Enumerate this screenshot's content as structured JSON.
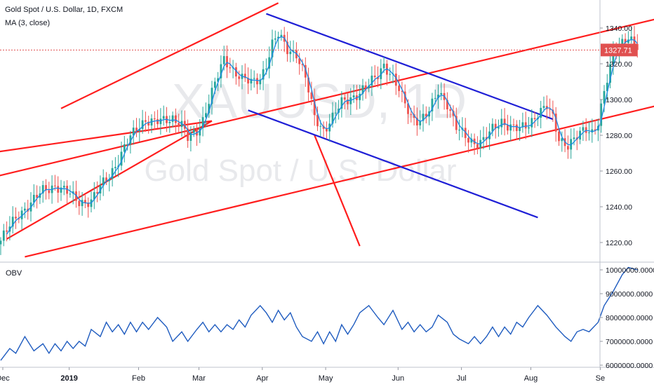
{
  "header": {
    "symbol_line": "Gold Spot / U.S. Dollar, 1D, FXCM",
    "ma_label": "MA (3, close)",
    "watermark_symbol": "XAUUSD, 1D",
    "watermark_name": "Gold Spot / U.S. Dollar"
  },
  "price_badge": "1327.71",
  "osc_label": "OBV",
  "colors": {
    "up": "#26a69a",
    "down": "#ef5350",
    "ma": "#1e88e5",
    "trend_red": "#ff1e1e",
    "trend_blue": "#1f1fd6",
    "obv": "#1e5bbf",
    "badge": "#e05050"
  },
  "chart_data": [
    {
      "type": "candlestick",
      "title": "Gold Spot / U.S. Dollar, 1D, FXCM",
      "series_name": "MA (3, close)",
      "y_ticks": [
        "1340.00",
        "1320.00",
        "1300.00",
        "1280.00",
        "1260.00",
        "1240.00",
        "1220.00"
      ],
      "y_tick_values": [
        1340,
        1320,
        1300,
        1280,
        1260,
        1240,
        1220
      ],
      "ylim": [
        1212,
        1350
      ],
      "x_ticks": [
        "Dec",
        "2019",
        "Feb",
        "Mar",
        "Apr",
        "May",
        "Jun",
        "Jul",
        "Aug",
        "Se"
      ],
      "last_price": 1327.71,
      "close_path": [
        [
          0,
          1221
        ],
        [
          3,
          1229
        ],
        [
          6,
          1236
        ],
        [
          10,
          1242
        ],
        [
          14,
          1249
        ],
        [
          18,
          1252
        ],
        [
          22,
          1248
        ],
        [
          26,
          1243
        ],
        [
          30,
          1243
        ],
        [
          33,
          1251
        ],
        [
          36,
          1258
        ],
        [
          39,
          1266
        ],
        [
          42,
          1276
        ],
        [
          45,
          1284
        ],
        [
          48,
          1289
        ],
        [
          51,
          1287
        ],
        [
          54,
          1288
        ],
        [
          57,
          1290
        ],
        [
          60,
          1286
        ],
        [
          62,
          1278
        ],
        [
          65,
          1282
        ],
        [
          67,
          1289
        ],
        [
          69,
          1300
        ],
        [
          72,
          1313
        ],
        [
          74,
          1322
        ],
        [
          77,
          1317
        ],
        [
          80,
          1312
        ],
        [
          83,
          1309
        ],
        [
          86,
          1312
        ],
        [
          88,
          1320
        ],
        [
          90,
          1331
        ],
        [
          92,
          1336
        ],
        [
          95,
          1328
        ],
        [
          98,
          1326
        ],
        [
          101,
          1312
        ],
        [
          104,
          1290
        ],
        [
          107,
          1283
        ],
        [
          110,
          1290
        ],
        [
          113,
          1298
        ],
        [
          116,
          1301
        ],
        [
          119,
          1304
        ],
        [
          122,
          1308
        ],
        [
          125,
          1314
        ],
        [
          127,
          1320
        ],
        [
          130,
          1312
        ],
        [
          133,
          1301
        ],
        [
          136,
          1291
        ],
        [
          139,
          1288
        ],
        [
          142,
          1293
        ],
        [
          145,
          1305
        ],
        [
          148,
          1298
        ],
        [
          151,
          1284
        ],
        [
          154,
          1279
        ],
        [
          157,
          1276
        ],
        [
          160,
          1277
        ],
        [
          163,
          1283
        ],
        [
          166,
          1288
        ],
        [
          169,
          1285
        ],
        [
          172,
          1283
        ],
        [
          175,
          1286
        ],
        [
          178,
          1293
        ],
        [
          181,
          1296
        ],
        [
          183,
          1289
        ],
        [
          185,
          1278
        ],
        [
          188,
          1275
        ],
        [
          191,
          1279
        ],
        [
          194,
          1283
        ],
        [
          196,
          1282
        ],
        [
          198,
          1288
        ],
        [
          200,
          1304
        ],
        [
          203,
          1324
        ],
        [
          205,
          1331
        ],
        [
          208,
          1336
        ],
        [
          211,
          1328
        ]
      ],
      "trendlines": [
        {
          "color": "red",
          "from": [
            -4,
            1270
          ],
          "to": [
            70,
            1288
          ]
        },
        {
          "color": "red",
          "from": [
            -4,
            1256
          ],
          "to": [
            242,
            1355
          ]
        },
        {
          "color": "red",
          "from": [
            8,
            1212
          ],
          "to": [
            283,
            1323
          ]
        },
        {
          "color": "red",
          "from": [
            20,
            1295
          ],
          "to": [
            92,
            1354
          ]
        },
        {
          "color": "red",
          "from": [
            2,
            1222
          ],
          "to": [
            70,
            1288
          ]
        },
        {
          "color": "red",
          "from": [
            104,
            1280
          ],
          "to": [
            119,
            1218
          ]
        },
        {
          "color": "blue",
          "from": [
            88,
            1348
          ],
          "to": [
            183,
            1289
          ]
        },
        {
          "color": "blue",
          "from": [
            82,
            1294
          ],
          "to": [
            178,
            1234
          ]
        }
      ]
    },
    {
      "type": "line",
      "title": "OBV",
      "y_ticks": [
        "10000000.0000",
        "9000000.0000",
        "8000000.0000",
        "7000000.0000",
        "6000000.0000"
      ],
      "y_tick_values": [
        10000000,
        9000000,
        8000000,
        7000000,
        6000000
      ],
      "ylim": [
        5900000,
        10150000
      ],
      "values_path": [
        [
          0,
          6200000
        ],
        [
          3,
          6700000
        ],
        [
          5,
          6500000
        ],
        [
          8,
          7200000
        ],
        [
          11,
          6600000
        ],
        [
          14,
          6900000
        ],
        [
          16,
          6500000
        ],
        [
          18,
          6900000
        ],
        [
          20,
          6600000
        ],
        [
          22,
          7000000
        ],
        [
          24,
          6700000
        ],
        [
          26,
          7000000
        ],
        [
          28,
          6800000
        ],
        [
          30,
          7500000
        ],
        [
          33,
          7200000
        ],
        [
          35,
          7800000
        ],
        [
          37,
          7400000
        ],
        [
          39,
          7700000
        ],
        [
          41,
          7300000
        ],
        [
          43,
          7800000
        ],
        [
          45,
          7400000
        ],
        [
          47,
          7800000
        ],
        [
          49,
          7500000
        ],
        [
          52,
          8000000
        ],
        [
          55,
          7600000
        ],
        [
          57,
          7000000
        ],
        [
          60,
          7400000
        ],
        [
          62,
          7000000
        ],
        [
          65,
          7500000
        ],
        [
          67,
          7800000
        ],
        [
          69,
          7400000
        ],
        [
          71,
          7700000
        ],
        [
          73,
          7400000
        ],
        [
          75,
          7700000
        ],
        [
          77,
          7500000
        ],
        [
          79,
          7900000
        ],
        [
          81,
          7600000
        ],
        [
          83,
          8100000
        ],
        [
          86,
          8500000
        ],
        [
          88,
          8200000
        ],
        [
          90,
          7800000
        ],
        [
          92,
          8300000
        ],
        [
          94,
          7900000
        ],
        [
          96,
          8200000
        ],
        [
          98,
          7600000
        ],
        [
          100,
          7200000
        ],
        [
          103,
          7000000
        ],
        [
          105,
          7400000
        ],
        [
          107,
          6900000
        ],
        [
          109,
          7400000
        ],
        [
          111,
          7000000
        ],
        [
          113,
          7700000
        ],
        [
          115,
          7300000
        ],
        [
          117,
          7700000
        ],
        [
          119,
          8200000
        ],
        [
          122,
          8500000
        ],
        [
          125,
          8000000
        ],
        [
          127,
          7700000
        ],
        [
          130,
          8300000
        ],
        [
          133,
          7500000
        ],
        [
          135,
          7800000
        ],
        [
          137,
          7400000
        ],
        [
          139,
          7700000
        ],
        [
          141,
          7400000
        ],
        [
          143,
          7600000
        ],
        [
          145,
          8100000
        ],
        [
          148,
          7800000
        ],
        [
          150,
          7300000
        ],
        [
          152,
          7100000
        ],
        [
          155,
          6900000
        ],
        [
          157,
          7200000
        ],
        [
          159,
          6900000
        ],
        [
          161,
          7200000
        ],
        [
          163,
          7600000
        ],
        [
          165,
          7200000
        ],
        [
          167,
          7600000
        ],
        [
          169,
          7300000
        ],
        [
          171,
          7800000
        ],
        [
          173,
          7600000
        ],
        [
          175,
          8000000
        ],
        [
          178,
          8500000
        ],
        [
          181,
          8100000
        ],
        [
          184,
          7600000
        ],
        [
          187,
          7200000
        ],
        [
          189,
          7000000
        ],
        [
          191,
          7400000
        ],
        [
          193,
          7500000
        ],
        [
          195,
          7400000
        ],
        [
          198,
          7800000
        ],
        [
          200,
          8500000
        ],
        [
          203,
          9100000
        ],
        [
          206,
          9800000
        ],
        [
          208,
          10100000
        ],
        [
          211,
          10000000
        ]
      ]
    }
  ]
}
